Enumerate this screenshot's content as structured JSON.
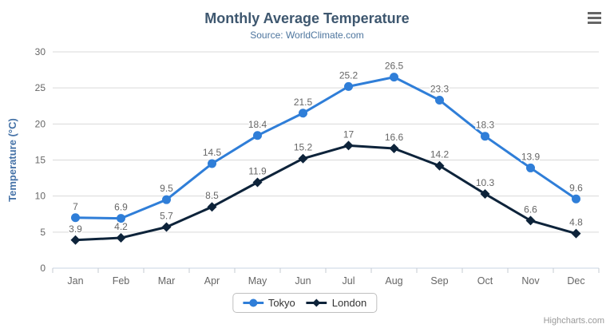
{
  "header": {
    "title": "Monthly Average Temperature",
    "subtitle": "Source: WorldClimate.com"
  },
  "export_menu": {
    "icon": "hamburger-menu-icon"
  },
  "credits": {
    "label": "Highcharts.com"
  },
  "colors": {
    "title": "#3e576f",
    "subtitle": "#4d759e",
    "axis_title": "#4572a7",
    "tick_label": "#666666",
    "grid": "#d9d9d9",
    "axis_line": "#c9d4e3",
    "tick_mark": "#c4cbd2",
    "data_label": "#666666",
    "legend_text": "#333333",
    "legend_border": "#bfbfbf",
    "credits_text": "#999999",
    "menu_icon": "#666666"
  },
  "chart_data": {
    "type": "line",
    "title": "Monthly Average Temperature",
    "subtitle": "Source: WorldClimate.com",
    "categories": [
      "Jan",
      "Feb",
      "Mar",
      "Apr",
      "May",
      "Jun",
      "Jul",
      "Aug",
      "Sep",
      "Oct",
      "Nov",
      "Dec"
    ],
    "xlabel": "",
    "ylabel": "Temperature (°C)",
    "ylim": [
      0,
      30
    ],
    "ytick_interval": 5,
    "grid": true,
    "legend_position": "bottom-center",
    "data_labels": true,
    "series": [
      {
        "name": "Tokyo",
        "color": "#2f7ed8",
        "marker": "circle",
        "values": [
          7,
          6.9,
          9.5,
          14.5,
          18.4,
          21.5,
          25.2,
          26.5,
          23.3,
          18.3,
          13.9,
          9.6
        ]
      },
      {
        "name": "London",
        "color": "#0d233a",
        "marker": "diamond",
        "values": [
          3.9,
          4.2,
          5.7,
          8.5,
          11.9,
          15.2,
          17,
          16.6,
          14.2,
          10.3,
          6.6,
          4.8
        ]
      }
    ]
  }
}
